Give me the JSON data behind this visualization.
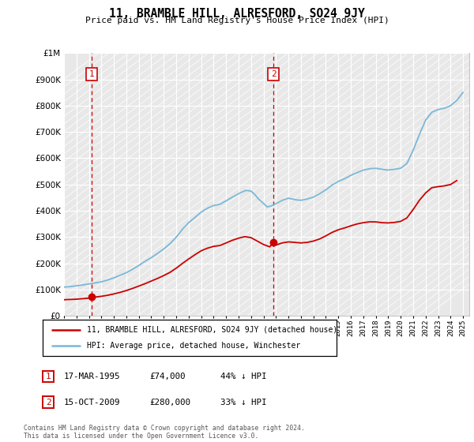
{
  "title": "11, BRAMBLE HILL, ALRESFORD, SO24 9JY",
  "subtitle": "Price paid vs. HM Land Registry's House Price Index (HPI)",
  "legend_line1": "11, BRAMBLE HILL, ALRESFORD, SO24 9JY (detached house)",
  "legend_line2": "HPI: Average price, detached house, Winchester",
  "sale1_date": "17-MAR-1995",
  "sale1_price": 74000,
  "sale1_label": "44% ↓ HPI",
  "sale2_date": "15-OCT-2009",
  "sale2_price": 280000,
  "sale2_label": "33% ↓ HPI",
  "footnote": "Contains HM Land Registry data © Crown copyright and database right 2024.\nThis data is licensed under the Open Government Licence v3.0.",
  "hpi_color": "#7ab8d8",
  "price_color": "#cc0000",
  "sale1_x": 1995.21,
  "sale2_x": 2009.79,
  "ylim_max": 1000000,
  "ylim_min": 0,
  "hpi_data_x": [
    1993.0,
    1993.5,
    1994.0,
    1994.5,
    1995.0,
    1995.5,
    1996.0,
    1996.5,
    1997.0,
    1997.5,
    1998.0,
    1998.5,
    1999.0,
    1999.5,
    2000.0,
    2000.5,
    2001.0,
    2001.5,
    2002.0,
    2002.5,
    2003.0,
    2003.5,
    2004.0,
    2004.5,
    2005.0,
    2005.5,
    2006.0,
    2006.5,
    2007.0,
    2007.3,
    2007.6,
    2008.0,
    2008.3,
    2008.6,
    2009.0,
    2009.3,
    2009.6,
    2009.9,
    2010.2,
    2010.5,
    2010.8,
    2011.0,
    2011.3,
    2011.6,
    2012.0,
    2012.5,
    2013.0,
    2013.5,
    2014.0,
    2014.5,
    2015.0,
    2015.5,
    2016.0,
    2016.5,
    2017.0,
    2017.5,
    2018.0,
    2018.5,
    2019.0,
    2019.5,
    2020.0,
    2020.5,
    2021.0,
    2021.5,
    2022.0,
    2022.5,
    2023.0,
    2023.5,
    2024.0,
    2024.5,
    2025.0
  ],
  "hpi_data_y": [
    110000,
    112000,
    115000,
    118000,
    122000,
    126000,
    130000,
    137000,
    145000,
    155000,
    165000,
    178000,
    192000,
    208000,
    222000,
    238000,
    255000,
    275000,
    300000,
    330000,
    355000,
    375000,
    395000,
    410000,
    420000,
    425000,
    438000,
    452000,
    465000,
    472000,
    478000,
    475000,
    462000,
    445000,
    428000,
    415000,
    418000,
    425000,
    432000,
    440000,
    445000,
    448000,
    445000,
    442000,
    440000,
    445000,
    452000,
    465000,
    480000,
    498000,
    512000,
    522000,
    535000,
    545000,
    555000,
    560000,
    562000,
    558000,
    555000,
    558000,
    562000,
    580000,
    630000,
    690000,
    745000,
    775000,
    785000,
    790000,
    800000,
    820000,
    850000
  ],
  "price_data_x": [
    1993.0,
    1993.5,
    1994.0,
    1994.5,
    1995.0,
    1995.21,
    1995.5,
    1996.0,
    1996.5,
    1997.0,
    1997.5,
    1998.0,
    1998.5,
    1999.0,
    1999.5,
    2000.0,
    2000.5,
    2001.0,
    2001.5,
    2002.0,
    2002.5,
    2003.0,
    2003.5,
    2004.0,
    2004.5,
    2005.0,
    2005.5,
    2006.0,
    2006.5,
    2007.0,
    2007.5,
    2008.0,
    2008.5,
    2009.0,
    2009.5,
    2009.79,
    2010.0,
    2010.5,
    2011.0,
    2011.5,
    2012.0,
    2012.5,
    2013.0,
    2013.5,
    2014.0,
    2014.5,
    2015.0,
    2015.5,
    2016.0,
    2016.5,
    2017.0,
    2017.5,
    2018.0,
    2018.5,
    2019.0,
    2019.5,
    2020.0,
    2020.5,
    2021.0,
    2021.5,
    2022.0,
    2022.5,
    2023.0,
    2023.5,
    2024.0,
    2024.5
  ],
  "price_data_y": [
    62000,
    63000,
    64000,
    66000,
    68000,
    74000,
    72000,
    75000,
    79000,
    84000,
    90000,
    97000,
    105000,
    114000,
    123000,
    133000,
    143000,
    154000,
    166000,
    182000,
    200000,
    217000,
    233000,
    248000,
    258000,
    265000,
    268000,
    278000,
    288000,
    296000,
    302000,
    298000,
    285000,
    272000,
    263000,
    280000,
    270000,
    278000,
    282000,
    280000,
    278000,
    280000,
    285000,
    293000,
    305000,
    318000,
    328000,
    335000,
    343000,
    350000,
    355000,
    358000,
    358000,
    355000,
    354000,
    356000,
    360000,
    373000,
    405000,
    440000,
    468000,
    488000,
    492000,
    495000,
    500000,
    515000
  ]
}
